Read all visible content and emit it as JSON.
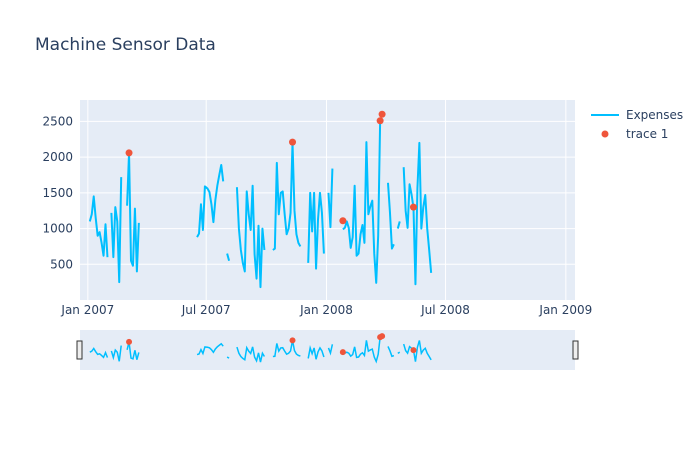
{
  "chart_data": {
    "type": "line",
    "title": "Machine Sensor Data",
    "xlabel": "",
    "ylabel": "",
    "x_ticks": [
      "Jan 2007",
      "Jul 2007",
      "Jan 2008",
      "Jul 2008",
      "Jan 2009"
    ],
    "y_ticks": [
      "500",
      "1000",
      "1500",
      "2000",
      "2500"
    ],
    "ylim": [
      0,
      2800
    ],
    "grid": true,
    "legend_position": "top-right",
    "range_slider": true,
    "series": [
      {
        "name": "Expenses",
        "type": "line",
        "color": "#00bfff",
        "points": [
          [
            "2007-01-04",
            1100
          ],
          [
            "2007-01-07",
            1200
          ],
          [
            "2007-01-10",
            1450
          ],
          [
            "2007-01-13",
            1150
          ],
          [
            "2007-01-16",
            900
          ],
          [
            "2007-01-19",
            950
          ],
          [
            "2007-01-22",
            800
          ],
          [
            "2007-01-25",
            620
          ],
          [
            "2007-01-28",
            1060
          ],
          [
            "2007-01-31",
            600
          ],
          [
            "2007-02-03",
            null
          ],
          [
            "2007-02-06",
            1220
          ],
          [
            "2007-02-09",
            600
          ],
          [
            "2007-02-12",
            1300
          ],
          [
            "2007-02-15",
            1100
          ],
          [
            "2007-02-18",
            250
          ],
          [
            "2007-02-21",
            1720
          ],
          [
            "2007-02-24",
            null
          ],
          [
            "2007-03-02",
            1320
          ],
          [
            "2007-03-05",
            2060
          ],
          [
            "2007-03-08",
            550
          ],
          [
            "2007-03-11",
            480
          ],
          [
            "2007-03-14",
            1280
          ],
          [
            "2007-03-17",
            400
          ],
          [
            "2007-03-20",
            1080
          ],
          [
            "2007-03-23",
            null
          ],
          [
            "2007-06-17",
            880
          ],
          [
            "2007-06-20",
            930
          ],
          [
            "2007-06-23",
            1340
          ],
          [
            "2007-06-26",
            980
          ],
          [
            "2007-06-29",
            1590
          ],
          [
            "2007-07-03",
            1560
          ],
          [
            "2007-07-06",
            1510
          ],
          [
            "2007-07-09",
            1340
          ],
          [
            "2007-07-12",
            1090
          ],
          [
            "2007-07-15",
            1400
          ],
          [
            "2007-07-18",
            1600
          ],
          [
            "2007-07-21",
            1750
          ],
          [
            "2007-07-24",
            1890
          ],
          [
            "2007-07-27",
            1660
          ],
          [
            "2007-07-30",
            null
          ],
          [
            "2007-08-02",
            650
          ],
          [
            "2007-08-05",
            550
          ],
          [
            "2007-08-08",
            null
          ],
          [
            "2007-08-17",
            1580
          ],
          [
            "2007-08-20",
            1000
          ],
          [
            "2007-08-23",
            700
          ],
          [
            "2007-08-26",
            520
          ],
          [
            "2007-08-29",
            400
          ],
          [
            "2007-09-01",
            1520
          ],
          [
            "2007-09-04",
            1200
          ],
          [
            "2007-09-07",
            980
          ],
          [
            "2007-09-10",
            1600
          ],
          [
            "2007-09-13",
            640
          ],
          [
            "2007-09-16",
            300
          ],
          [
            "2007-09-19",
            1040
          ],
          [
            "2007-09-22",
            180
          ],
          [
            "2007-09-25",
            1000
          ],
          [
            "2007-09-28",
            700
          ],
          [
            "2007-10-01",
            null
          ],
          [
            "2007-10-11",
            700
          ],
          [
            "2007-10-14",
            720
          ],
          [
            "2007-10-17",
            1920
          ],
          [
            "2007-10-20",
            1200
          ],
          [
            "2007-10-23",
            1500
          ],
          [
            "2007-10-26",
            1520
          ],
          [
            "2007-10-29",
            1200
          ],
          [
            "2007-11-01",
            920
          ],
          [
            "2007-11-04",
            1000
          ],
          [
            "2007-11-07",
            1220
          ],
          [
            "2007-11-10",
            2200
          ],
          [
            "2007-11-13",
            1250
          ],
          [
            "2007-11-16",
            920
          ],
          [
            "2007-11-19",
            800
          ],
          [
            "2007-11-22",
            750
          ],
          [
            "2007-11-25",
            null
          ],
          [
            "2007-12-04",
            520
          ],
          [
            "2007-12-07",
            1500
          ],
          [
            "2007-12-10",
            960
          ],
          [
            "2007-12-13",
            1500
          ],
          [
            "2007-12-16",
            440
          ],
          [
            "2007-12-19",
            1130
          ],
          [
            "2007-12-22",
            1500
          ],
          [
            "2007-12-25",
            1220
          ],
          [
            "2007-12-28",
            650
          ],
          [
            "2007-12-31",
            null
          ],
          [
            "2008-01-04",
            1500
          ],
          [
            "2008-01-07",
            1020
          ],
          [
            "2008-01-10",
            1840
          ],
          [
            "2008-01-13",
            null
          ],
          [
            "2008-01-26",
            990
          ],
          [
            "2008-01-29",
            1010
          ],
          [
            "2008-02-01",
            1100
          ],
          [
            "2008-02-04",
            1010
          ],
          [
            "2008-02-07",
            730
          ],
          [
            "2008-02-10",
            880
          ],
          [
            "2008-02-13",
            1600
          ],
          [
            "2008-02-16",
            620
          ],
          [
            "2008-02-19",
            650
          ],
          [
            "2008-02-22",
            920
          ],
          [
            "2008-02-25",
            1050
          ],
          [
            "2008-02-28",
            800
          ],
          [
            "2008-03-02",
            2210
          ],
          [
            "2008-03-05",
            1200
          ],
          [
            "2008-03-08",
            1310
          ],
          [
            "2008-03-11",
            1390
          ],
          [
            "2008-03-14",
            650
          ],
          [
            "2008-03-17",
            240
          ],
          [
            "2008-03-20",
            900
          ],
          [
            "2008-03-23",
            2510
          ],
          [
            "2008-03-26",
            null
          ],
          [
            "2008-04-04",
            1640
          ],
          [
            "2008-04-07",
            1230
          ],
          [
            "2008-04-10",
            720
          ],
          [
            "2008-04-13",
            780
          ],
          [
            "2008-04-16",
            null
          ],
          [
            "2008-04-19",
            1000
          ],
          [
            "2008-04-22",
            1100
          ],
          [
            "2008-04-25",
            null
          ],
          [
            "2008-04-28",
            1860
          ],
          [
            "2008-05-01",
            1250
          ],
          [
            "2008-05-04",
            1010
          ],
          [
            "2008-05-07",
            1620
          ],
          [
            "2008-05-10",
            1480
          ],
          [
            "2008-05-13",
            1290
          ],
          [
            "2008-05-16",
            220
          ],
          [
            "2008-05-19",
            1560
          ],
          [
            "2008-05-22",
            2200
          ],
          [
            "2008-05-25",
            1000
          ],
          [
            "2008-05-28",
            1300
          ],
          [
            "2008-05-31",
            1470
          ],
          [
            "2008-06-03",
            1000
          ],
          [
            "2008-06-06",
            700
          ],
          [
            "2008-06-09",
            380
          ]
        ]
      },
      {
        "name": "trace 1",
        "type": "scatter",
        "color": "#ef553b",
        "points": [
          [
            "2007-03-05",
            2060
          ],
          [
            "2007-11-10",
            2210
          ],
          [
            "2008-01-26",
            1110
          ],
          [
            "2008-03-23",
            2510
          ],
          [
            "2008-03-26",
            2600
          ],
          [
            "2008-05-13",
            1300
          ]
        ]
      }
    ]
  }
}
